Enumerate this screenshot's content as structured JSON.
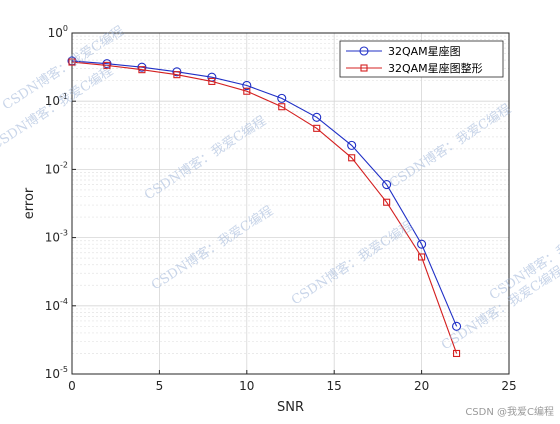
{
  "chart_data": {
    "type": "line",
    "xlabel": "SNR",
    "ylabel": "error",
    "xlim": [
      0,
      25
    ],
    "ylim": [
      1e-05,
      1
    ],
    "y_scale": "log",
    "grid": true,
    "legend_position": "top-right",
    "x_ticks": [
      "0",
      "5",
      "10",
      "15",
      "20",
      "25"
    ],
    "y_ticks": [
      {
        "base": "10",
        "exp": "0"
      },
      {
        "base": "10",
        "exp": "-1"
      },
      {
        "base": "10",
        "exp": "-2"
      },
      {
        "base": "10",
        "exp": "-3"
      },
      {
        "base": "10",
        "exp": "-4"
      },
      {
        "base": "10",
        "exp": "-5"
      }
    ],
    "series": [
      {
        "name": "32QAM星座图",
        "color": "#1f2fc6",
        "marker": "circle",
        "x": [
          0,
          2,
          4,
          6,
          8,
          10,
          12,
          14,
          16,
          18,
          20,
          22
        ],
        "y": [
          0.39,
          0.355,
          0.315,
          0.27,
          0.225,
          0.17,
          0.11,
          0.058,
          0.0225,
          0.006,
          0.0008,
          5e-05
        ]
      },
      {
        "name": "32QAM星座图整形",
        "color": "#d42020",
        "marker": "square",
        "x": [
          0,
          2,
          4,
          6,
          8,
          10,
          12,
          14,
          16,
          18,
          20,
          22
        ],
        "y": [
          0.375,
          0.335,
          0.29,
          0.245,
          0.195,
          0.14,
          0.083,
          0.04,
          0.0148,
          0.0033,
          0.00052,
          2e-05
        ]
      }
    ]
  },
  "watermark": "CSDN博客：我爱C编程",
  "footer": "CSDN @我爱C编程"
}
